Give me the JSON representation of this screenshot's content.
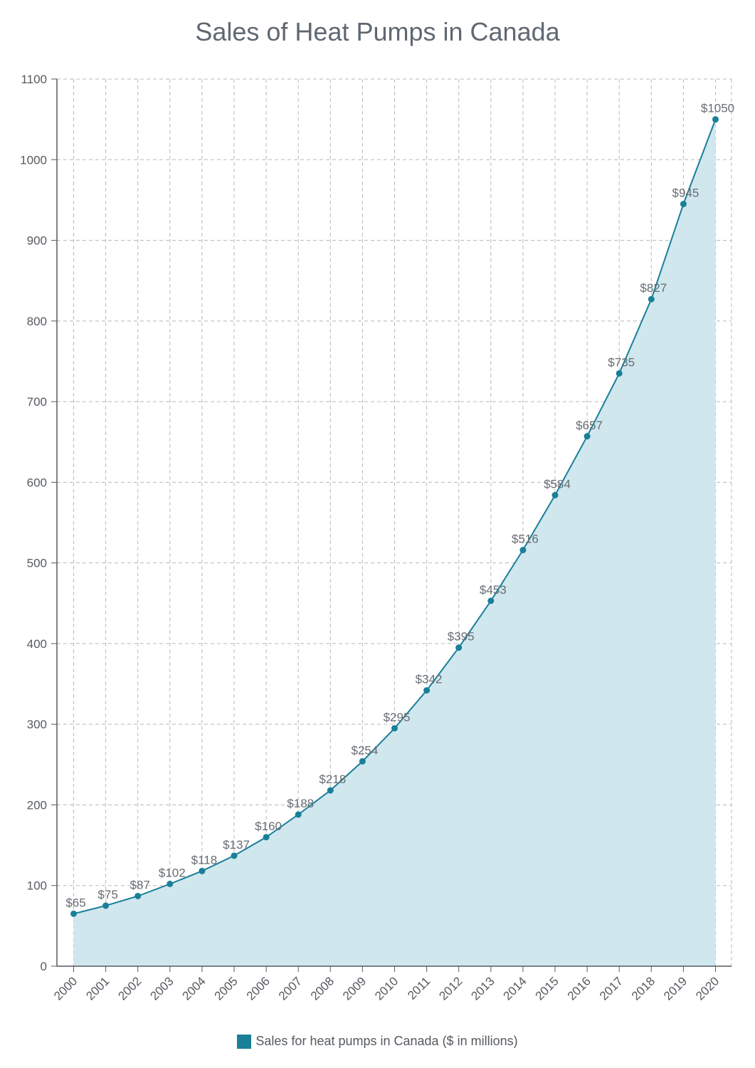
{
  "chart_data": {
    "type": "area",
    "title": "Sales of Heat Pumps in Canada",
    "xlabel": "",
    "ylabel": "",
    "categories": [
      "2000",
      "2001",
      "2002",
      "2003",
      "2004",
      "2005",
      "2006",
      "2007",
      "2008",
      "2009",
      "2010",
      "2011",
      "2012",
      "2013",
      "2014",
      "2015",
      "2016",
      "2017",
      "2018",
      "2019",
      "2020"
    ],
    "series": [
      {
        "name": "Sales for heat pumps in Canada ($ in millions)",
        "values": [
          65,
          75,
          87,
          102,
          118,
          137,
          160,
          188,
          218,
          254,
          295,
          342,
          395,
          453,
          516,
          584,
          657,
          735,
          827,
          945,
          1050
        ],
        "data_labels": [
          "$65",
          "$75",
          "$87",
          "$102",
          "$118",
          "$137",
          "$160",
          "$188",
          "$218",
          "$254",
          "$295",
          "$342",
          "$395",
          "$453",
          "$516",
          "$584",
          "$657",
          "$735",
          "$827",
          "$945",
          "$1050"
        ]
      }
    ],
    "ylim": [
      0,
      1100
    ],
    "yticks": [
      0,
      100,
      200,
      300,
      400,
      500,
      600,
      700,
      800,
      900,
      1000,
      1100
    ],
    "grid": true,
    "legend_position": "bottom-center",
    "colors": {
      "line": "#1a7f99",
      "fill": "#d0e7ee",
      "grid": "#b8b8b8"
    }
  }
}
